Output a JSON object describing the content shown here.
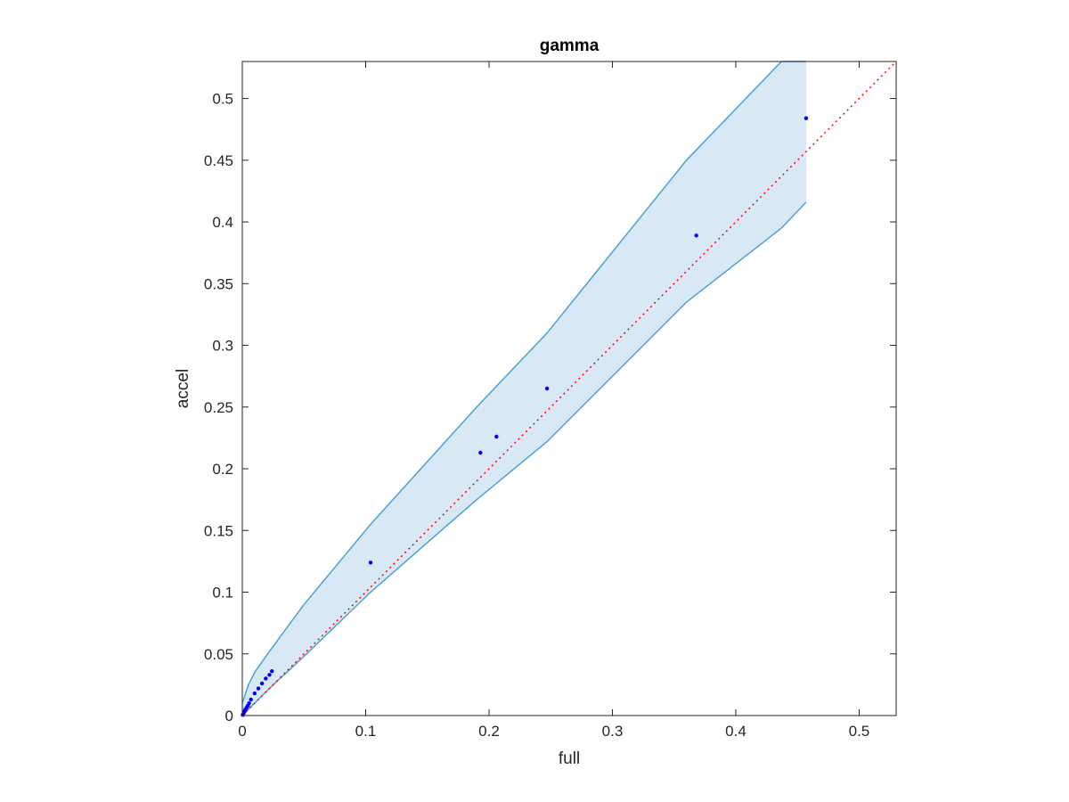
{
  "chart_data": {
    "type": "scatter",
    "title": "gamma",
    "xlabel": "full",
    "ylabel": "accel",
    "xlim": [
      0,
      0.53
    ],
    "ylim": [
      0,
      0.53
    ],
    "xticks": [
      0,
      0.1,
      0.2,
      0.3,
      0.4,
      0.5
    ],
    "yticks": [
      0,
      0.05,
      0.1,
      0.15,
      0.2,
      0.25,
      0.3,
      0.35,
      0.4,
      0.45,
      0.5
    ],
    "xtick_labels": [
      "0",
      "0.1",
      "0.2",
      "0.3",
      "0.4",
      "0.5"
    ],
    "ytick_labels": [
      "0",
      "0.05",
      "0.1",
      "0.15",
      "0.2",
      "0.25",
      "0.3",
      "0.35",
      "0.4",
      "0.45",
      "0.5"
    ],
    "grid": false,
    "series": [
      {
        "kind": "points",
        "color": "#0000ff",
        "x": [
          0.0003,
          0.0007,
          0.0012,
          0.0018,
          0.0025,
          0.0035,
          0.0045,
          0.0055,
          0.007,
          0.01,
          0.013,
          0.016,
          0.019,
          0.022,
          0.024,
          0.104,
          0.193,
          0.206,
          0.247,
          0.368,
          0.457
        ],
        "y": [
          0.0005,
          0.0012,
          0.002,
          0.0035,
          0.005,
          0.0065,
          0.008,
          0.01,
          0.013,
          0.018,
          0.022,
          0.026,
          0.03,
          0.033,
          0.036,
          0.124,
          0.213,
          0.226,
          0.265,
          0.389,
          0.484
        ]
      },
      {
        "kind": "band",
        "color": "#4da0d6",
        "fill": "#d9e8f5",
        "x": [
          0,
          0.005,
          0.01,
          0.022,
          0.05,
          0.104,
          0.19,
          0.247,
          0.36,
          0.437,
          0.457
        ],
        "upper": [
          0.01,
          0.025,
          0.035,
          0.052,
          0.09,
          0.155,
          0.25,
          0.31,
          0.45,
          0.53,
          0.53
        ],
        "lower": [
          0,
          0.005,
          0.01,
          0.022,
          0.048,
          0.1,
          0.175,
          0.222,
          0.335,
          0.395,
          0.416
        ]
      },
      {
        "kind": "reference",
        "style": "dotted",
        "color": "#ff0000",
        "x": [
          0,
          0.53
        ],
        "y": [
          0,
          0.53
        ]
      }
    ]
  }
}
